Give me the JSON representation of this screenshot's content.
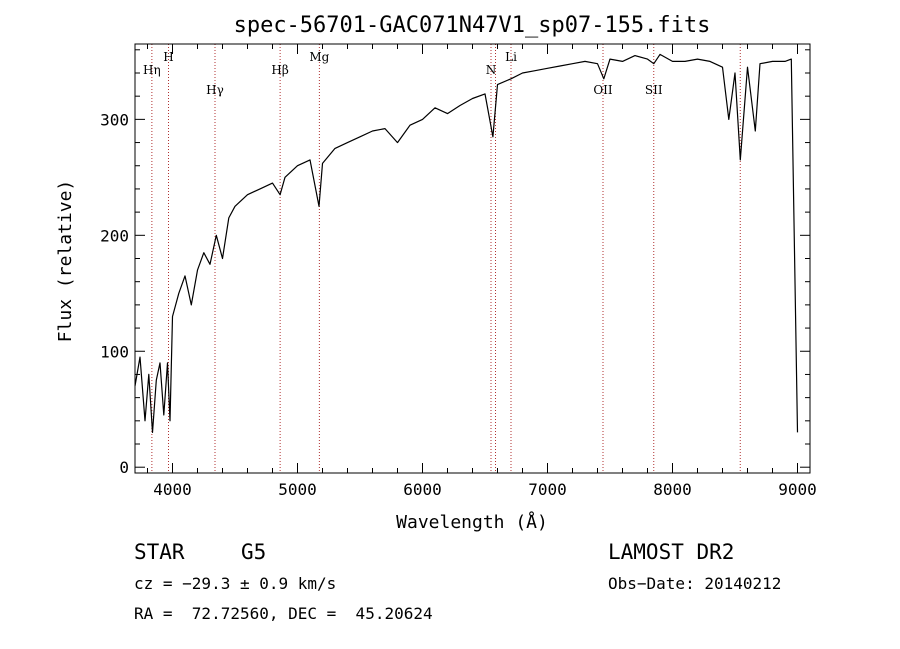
{
  "chart_data": {
    "type": "line",
    "title": "spec-56701-GAC071N47V1_sp07-155.fits",
    "xlabel": "Wavelength (Å)",
    "ylabel": "Flux (relative)",
    "xlim": [
      3700,
      9100
    ],
    "ylim": [
      -5,
      365
    ],
    "x_ticks": [
      4000,
      5000,
      6000,
      7000,
      8000,
      9000
    ],
    "y_ticks": [
      0,
      100,
      200,
      300
    ],
    "grid": false,
    "line_color": "#000000",
    "marker_color": "#b03030",
    "series": [
      {
        "x": [
          3700,
          3740,
          3780,
          3810,
          3840,
          3870,
          3900,
          3930,
          3960,
          3980,
          4000,
          4050,
          4100,
          4150,
          4200,
          4250,
          4300,
          4350,
          4400,
          4450,
          4500,
          4600,
          4700,
          4800,
          4861,
          4900,
          5000,
          5100,
          5172,
          5200,
          5300,
          5400,
          5500,
          5600,
          5700,
          5800,
          5900,
          6000,
          6100,
          6200,
          6300,
          6400,
          6500,
          6563,
          6600,
          6708,
          6800,
          6900,
          7000,
          7100,
          7200,
          7300,
          7400,
          7450,
          7500,
          7600,
          7700,
          7800,
          7850,
          7900,
          8000,
          8100,
          8200,
          8300,
          8400,
          8450,
          8500,
          8542,
          8600,
          8662,
          8700,
          8800,
          8900,
          8950,
          9000
        ],
        "y": [
          70,
          95,
          40,
          80,
          30,
          75,
          90,
          45,
          90,
          40,
          130,
          150,
          165,
          140,
          170,
          185,
          175,
          200,
          180,
          215,
          225,
          235,
          240,
          245,
          235,
          250,
          260,
          265,
          225,
          262,
          275,
          280,
          285,
          290,
          292,
          280,
          295,
          300,
          310,
          305,
          312,
          318,
          322,
          285,
          330,
          335,
          340,
          342,
          344,
          346,
          348,
          350,
          348,
          335,
          352,
          350,
          355,
          352,
          348,
          356,
          350,
          350,
          352,
          350,
          345,
          300,
          340,
          265,
          345,
          290,
          348,
          350,
          350,
          352,
          30
        ]
      }
    ],
    "lines": [
      {
        "label": "Hη",
        "wavelength": 3835
      },
      {
        "label": "H",
        "wavelength": 3968
      },
      {
        "label": "Hγ",
        "wavelength": 4340
      },
      {
        "label": "Hβ",
        "wavelength": 4861
      },
      {
        "label": "Mg",
        "wavelength": 5175
      },
      {
        "label": "N",
        "wavelength": 6548
      },
      {
        "label": "",
        "wavelength": 6584
      },
      {
        "label": "Li",
        "wavelength": 6708
      },
      {
        "label": "OII",
        "wavelength": 7444
      },
      {
        "label": "SII",
        "wavelength": 7850
      },
      {
        "label": "",
        "wavelength": 8542
      }
    ]
  },
  "info": {
    "class_label": "STAR",
    "subclass_label": "G5",
    "survey": "LAMOST DR2",
    "cz": "cz = −29.3 ± 0.9 km/s",
    "obs_date": "Obs−Date: 20140212",
    "coords": "RA =  72.72560, DEC =  45.20624"
  }
}
